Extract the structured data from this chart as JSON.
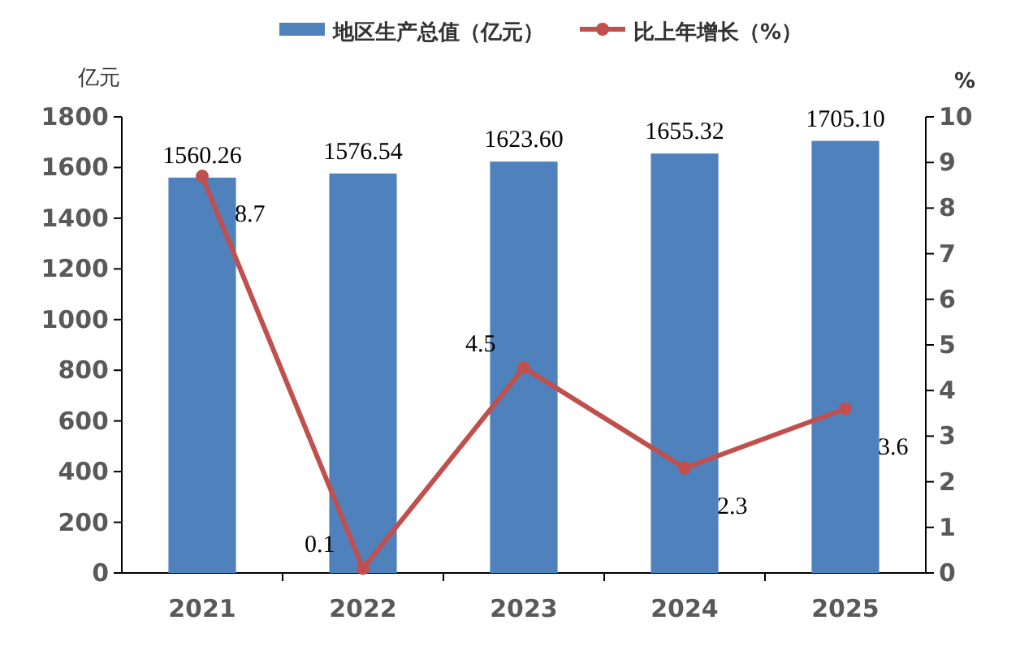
{
  "chart_data": {
    "type": "bar",
    "categories": [
      "2021",
      "2022",
      "2023",
      "2024",
      "2025"
    ],
    "ylabel": "亿元",
    "y2label": "%",
    "ylim": [
      0,
      1800
    ],
    "yticks": [
      0,
      200,
      400,
      600,
      800,
      1000,
      1200,
      1400,
      1600,
      1800
    ],
    "y2lim": [
      0,
      10
    ],
    "y2ticks": [
      0,
      1,
      2,
      3,
      4,
      5,
      6,
      7,
      8,
      9,
      10
    ],
    "legend": "top",
    "grid": false,
    "series": [
      {
        "name": "地区生产总值（亿元）",
        "color": "#4f81bd",
        "values": [
          1560.26,
          1576.54,
          1623.6,
          1655.32,
          1705.1
        ],
        "value_labels": [
          "1560.26",
          "1576.54",
          "1623.60",
          "1655.32",
          "1705.10"
        ]
      },
      {
        "name": "比上年增长（%）",
        "type": "line",
        "axis": "y2",
        "color": "#c0504d",
        "marker": "circle",
        "line_style": "solid",
        "values": [
          8.7,
          0.1,
          4.5,
          2.3,
          3.6
        ],
        "value_labels": [
          "8.7",
          "0.1",
          "4.5",
          "2.3",
          "3.6"
        ]
      }
    ]
  }
}
